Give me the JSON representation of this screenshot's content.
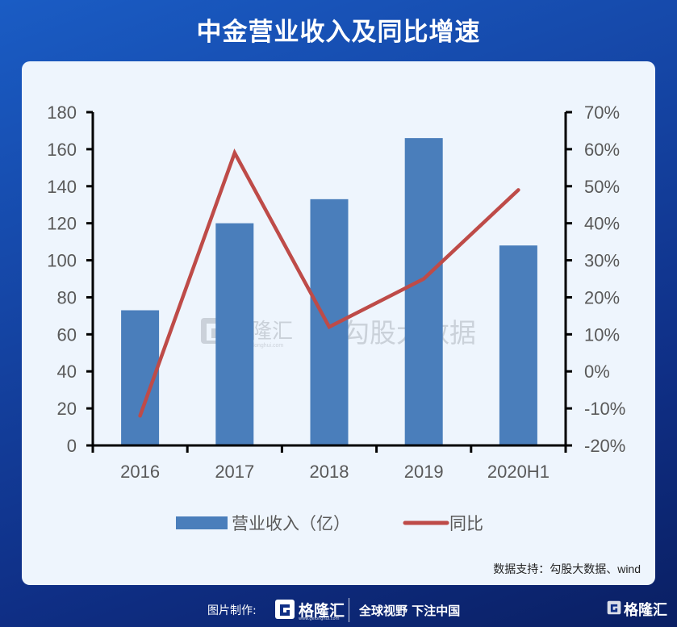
{
  "header": {
    "title": "中金营业收入及同比增速"
  },
  "chart_data": {
    "type": "bar",
    "title": "中金营业收入及同比增速",
    "categories": [
      "2016",
      "2017",
      "2018",
      "2019",
      "2020H1"
    ],
    "series": [
      {
        "name": "营业收入（亿）",
        "type": "bar",
        "axis": "left",
        "color": "#4a7ebb",
        "values": [
          73,
          120,
          133,
          166,
          108
        ]
      },
      {
        "name": "同比",
        "type": "line",
        "axis": "right",
        "color": "#be4b48",
        "values": [
          -12,
          59,
          12,
          25,
          49
        ],
        "unit": "%"
      }
    ],
    "xlabel": "",
    "ylabel": "",
    "ylim": [
      0,
      180
    ],
    "y_ticks": [
      "0",
      "20",
      "40",
      "60",
      "80",
      "100",
      "120",
      "140",
      "160",
      "180"
    ],
    "y2lim": [
      -20,
      70
    ],
    "y2_ticks": [
      "-20%",
      "-10%",
      "0%",
      "10%",
      "20%",
      "30%",
      "40%",
      "50%",
      "60%",
      "70%"
    ],
    "grid": false,
    "legend_position": "bottom"
  },
  "legend": {
    "bar_label": "营业收入（亿）",
    "line_label": "同比"
  },
  "watermark": {
    "brand": "格隆汇",
    "url": "www.gelonghui.com",
    "text": "勾股大数据"
  },
  "source": "数据支持：勾股大数据、wind",
  "footer": {
    "made_by": "图片制作:",
    "brand": "格隆汇",
    "brand_url": "www.gelonghui.com",
    "slogan": "全球视野 下注中国",
    "corner_brand": "格隆汇"
  }
}
